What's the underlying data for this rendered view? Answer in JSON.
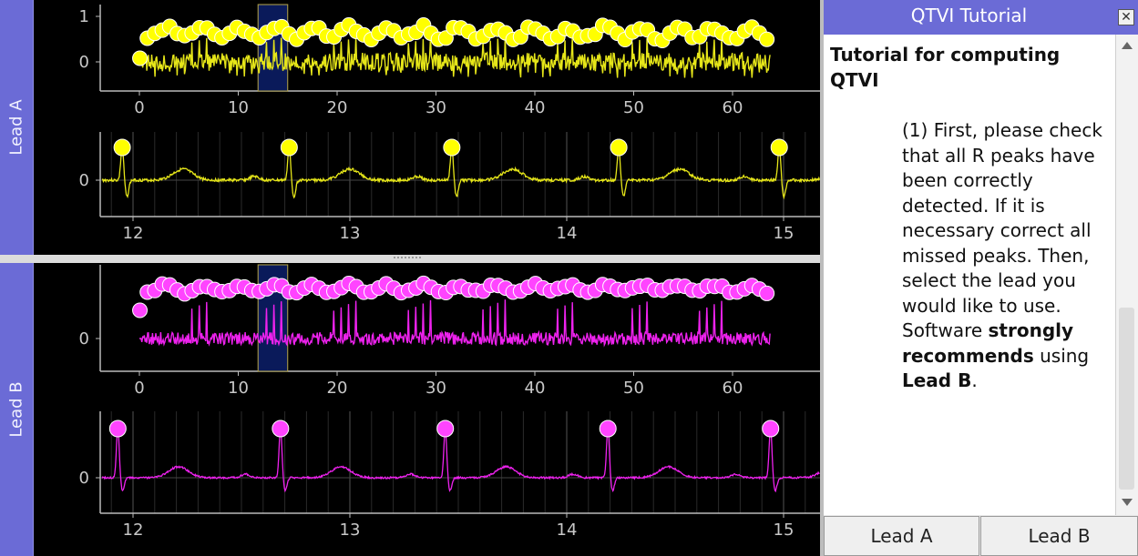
{
  "leads": [
    {
      "label": "Lead A",
      "color": "#ffff00",
      "trace_color": "#e6e619",
      "overview": {
        "x_ticks": [
          "0",
          "10",
          "20",
          "30",
          "40",
          "50",
          "60"
        ],
        "y_ticks": [
          "1",
          "0"
        ],
        "selection_start": 12,
        "selection_end": 15
      },
      "detail": {
        "x_ticks": [
          "12",
          "13",
          "14",
          "15"
        ],
        "y_ticks": [
          "0"
        ],
        "peak_times": [
          11.95,
          12.72,
          13.47,
          14.24,
          14.98
        ]
      }
    },
    {
      "label": "Lead B",
      "color": "#ff44ff",
      "trace_color": "#ee22ee",
      "overview": {
        "x_ticks": [
          "0",
          "10",
          "20",
          "30",
          "40",
          "50",
          "60"
        ],
        "y_ticks": [
          "0"
        ],
        "selection_start": 12,
        "selection_end": 15
      },
      "detail": {
        "x_ticks": [
          "12",
          "13",
          "14",
          "15"
        ],
        "y_ticks": [
          "0"
        ],
        "peak_times": [
          11.93,
          12.68,
          13.44,
          14.19,
          14.94
        ]
      }
    }
  ],
  "tutorial": {
    "title": "QTVI Tutorial",
    "heading": "Tutorial for computing QTVI",
    "text_1": "(1) First, please check that all R peaks have been correctly detected. If it is necessary correct all missed peaks. Then, select the lead you would like to use. Software ",
    "text_bold_1": "strongly recommends",
    "text_2": " using ",
    "text_bold_2": "Lead B",
    "text_3": ".",
    "close_symbol": "✕",
    "buttons": {
      "lead_a": "Lead A",
      "lead_b": "Lead B"
    }
  },
  "icons": {
    "close": "close-icon",
    "scroll_up": "scroll-up-icon",
    "scroll_down": "scroll-down-icon"
  }
}
